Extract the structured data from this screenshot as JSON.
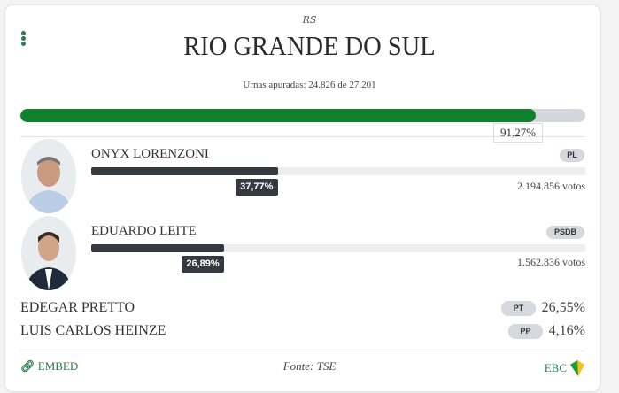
{
  "header": {
    "uf": "RS",
    "title": "RIO GRANDE DO SUL",
    "urnas": "Urnas apuradas: 24.826 de 27.201"
  },
  "progress": {
    "percent": 91.27,
    "label": "91,27%",
    "color": "#10812e"
  },
  "candidates": [
    {
      "name": "ONYX LORENZONI",
      "party": "PL",
      "percent": 37.77,
      "pct_label": "37,77%",
      "votes": "2.194.856 votos"
    },
    {
      "name": "EDUARDO LEITE",
      "party": "PSDB",
      "percent": 26.89,
      "pct_label": "26,89%",
      "votes": "1.562.836 votos"
    }
  ],
  "others": [
    {
      "name": "EDEGAR PRETTO",
      "party": "PT",
      "pct_label": "26,55%"
    },
    {
      "name": "LUIS CARLOS HEINZE",
      "party": "PP",
      "pct_label": "4,16%"
    }
  ],
  "footer": {
    "embed": "EMBED",
    "source": "Fonte: TSE",
    "brand": "EBC"
  }
}
